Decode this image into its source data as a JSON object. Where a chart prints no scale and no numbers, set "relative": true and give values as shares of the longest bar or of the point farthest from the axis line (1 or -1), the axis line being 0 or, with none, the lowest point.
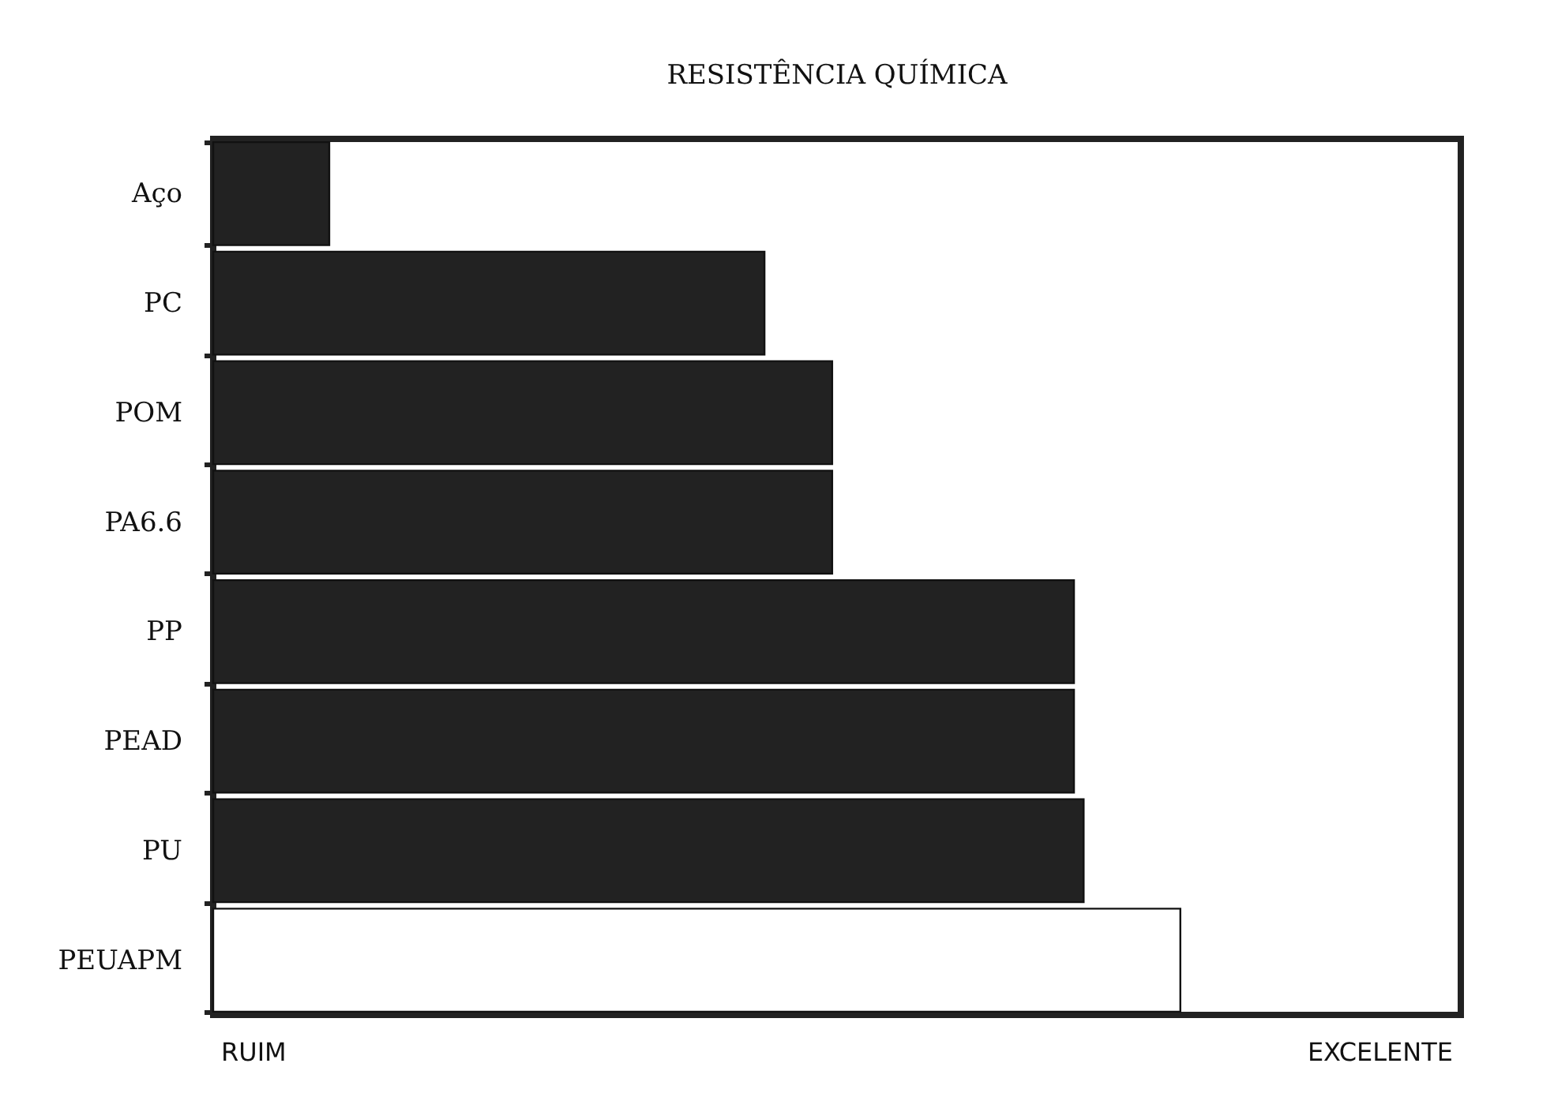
{
  "chart_data": {
    "type": "bar",
    "orientation": "horizontal",
    "relative": true,
    "title": "RESISTÊNCIA QUÍMICA",
    "categories": [
      "Aço",
      "PC",
      "POM",
      "PA6.6",
      "PP",
      "PEAD",
      "PU",
      "PEUAPM"
    ],
    "values": [
      0.12,
      0.57,
      0.64,
      0.64,
      0.89,
      0.89,
      0.9,
      1
    ],
    "colors": [
      "#222222",
      "#222222",
      "#222222",
      "#222222",
      "#222222",
      "#222222",
      "#222222",
      "#ffffff"
    ],
    "annotations": [
      "RUIM",
      "EXCELENTE"
    ]
  }
}
